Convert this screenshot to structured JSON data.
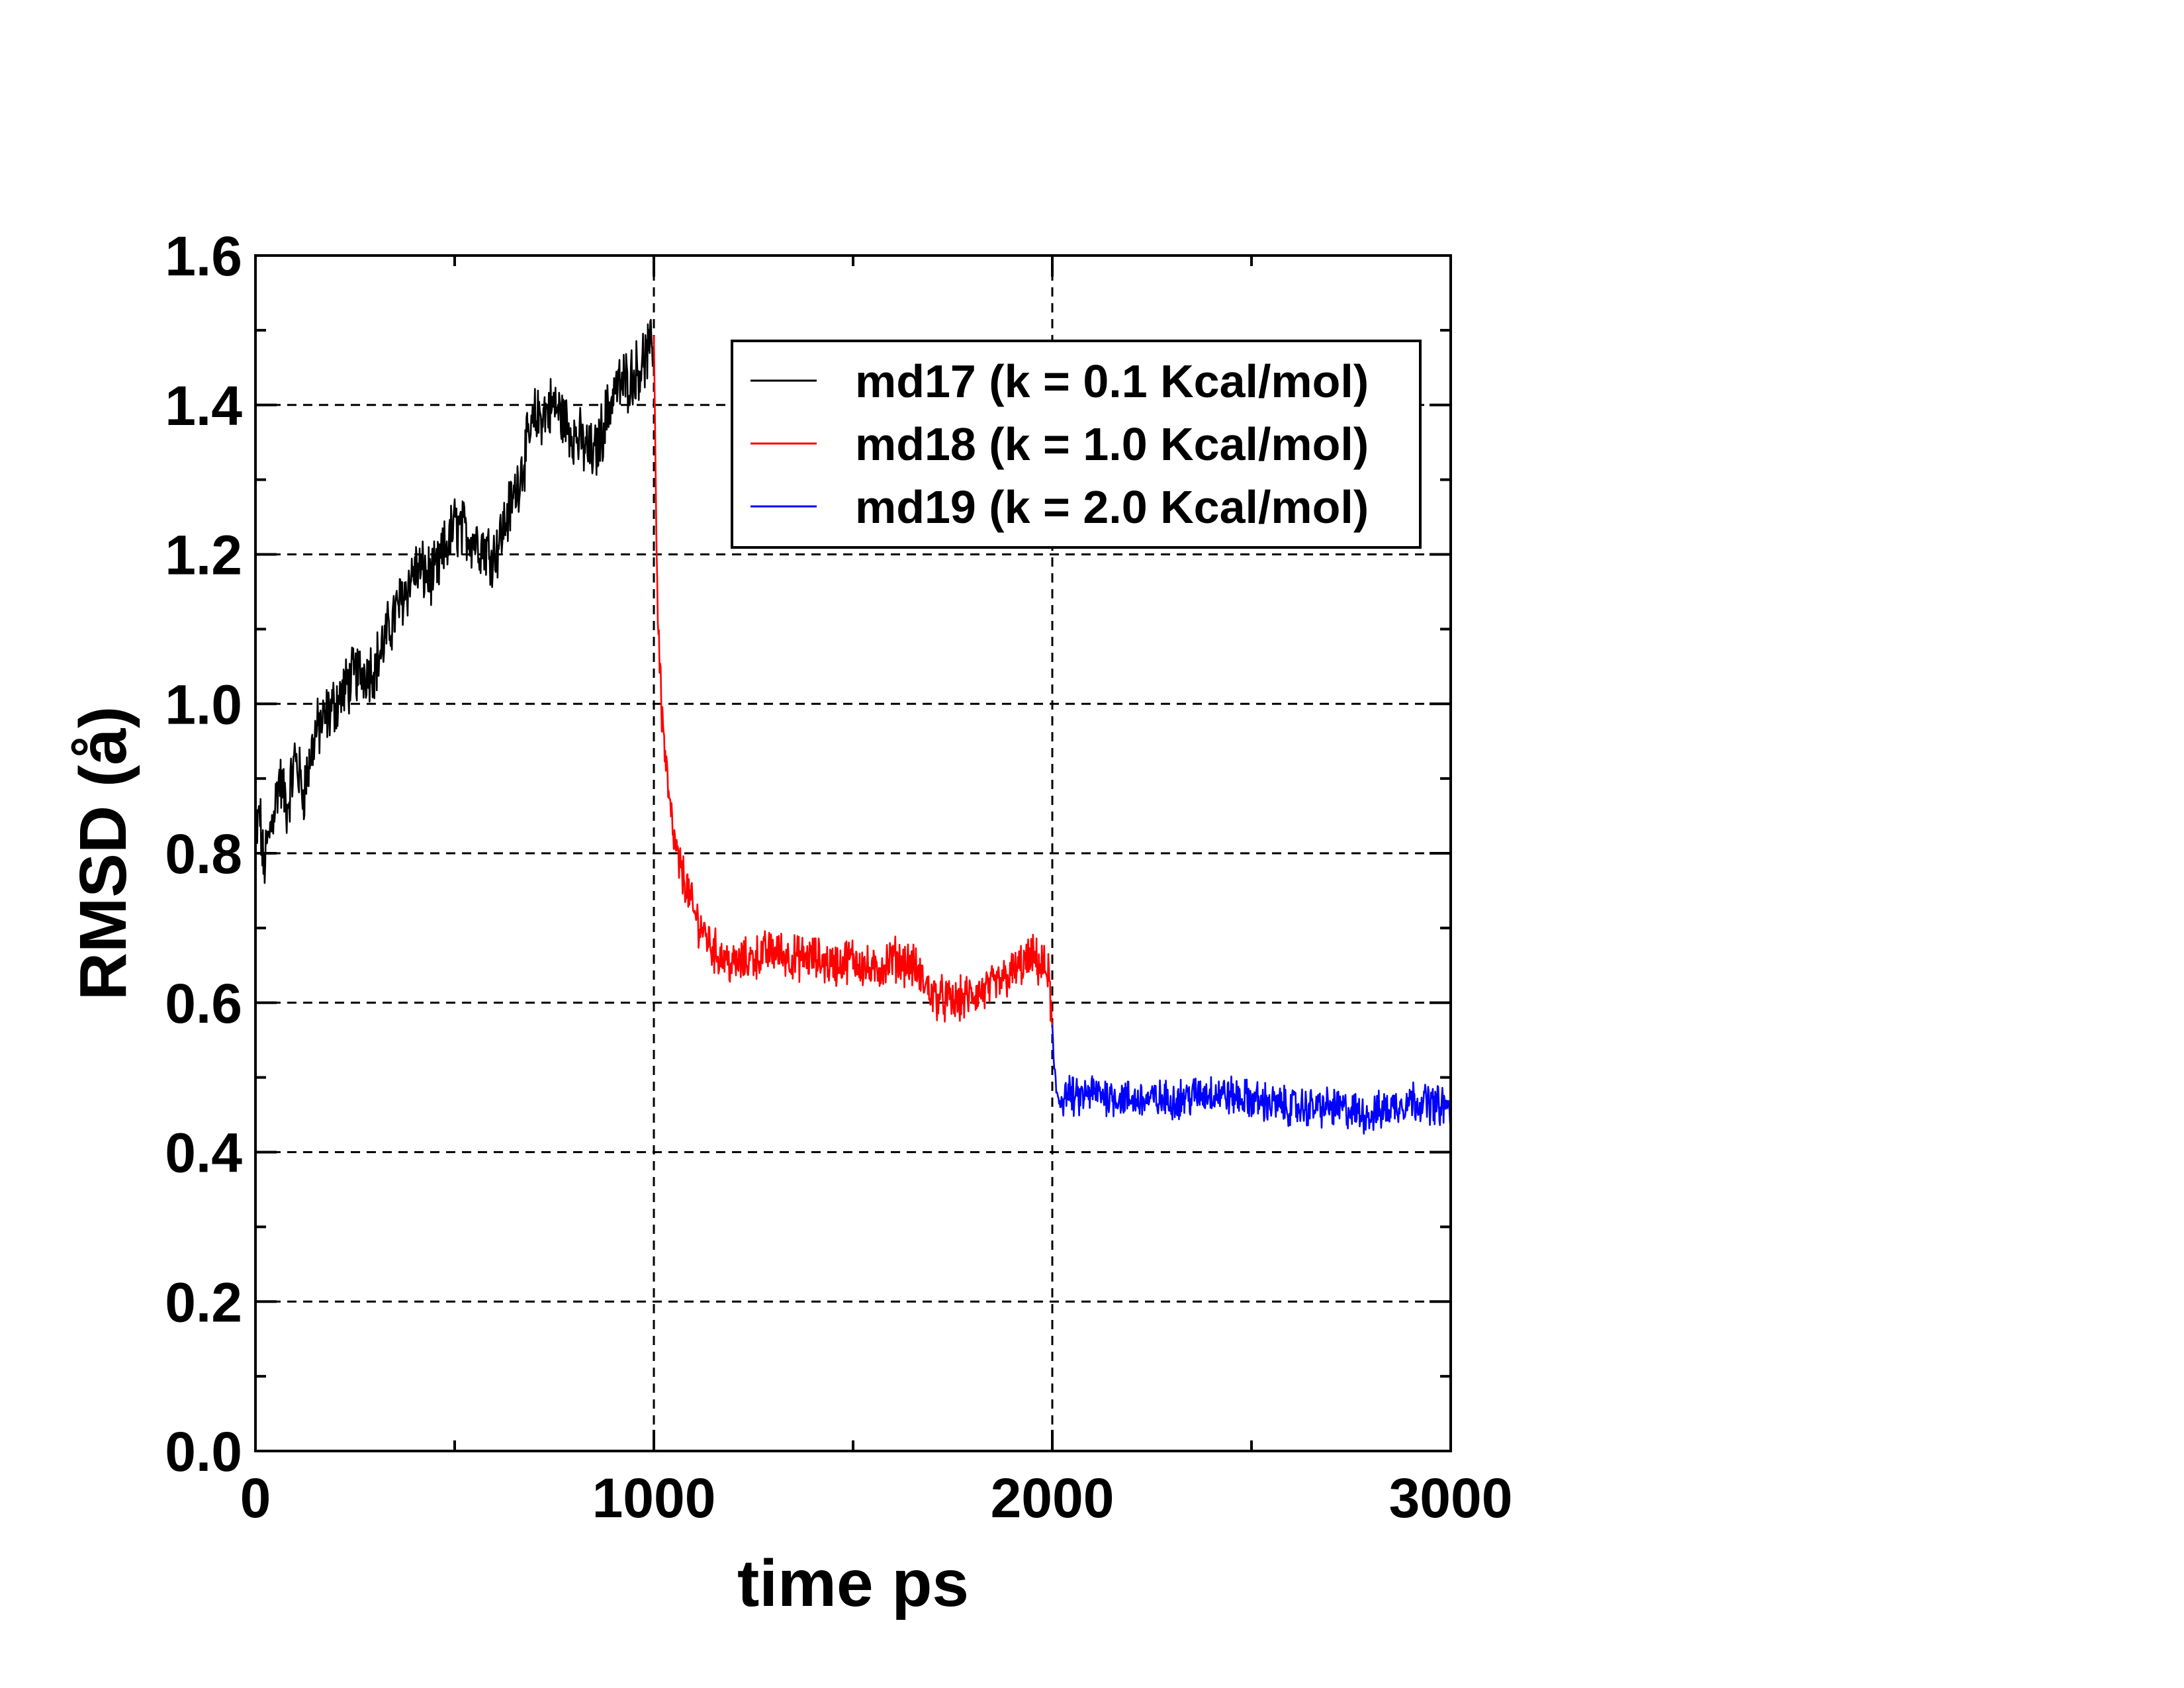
{
  "chart_data": {
    "type": "line",
    "title": "",
    "xlabel": "time ps",
    "ylabel": "RMSD (å)",
    "xlim": [
      0,
      3000
    ],
    "ylim": [
      0,
      1.6
    ],
    "x_ticks": [
      "0",
      "1000",
      "2000",
      "3000"
    ],
    "y_ticks": [
      "0.0",
      "0.2",
      "0.4",
      "0.6",
      "0.8",
      "1.0",
      "1.2",
      "1.4",
      "1.6"
    ],
    "x_tick_values": [
      0,
      1000,
      2000,
      3000
    ],
    "y_tick_values": [
      0.0,
      0.2,
      0.4,
      0.6,
      0.8,
      1.0,
      1.2,
      1.4,
      1.6
    ],
    "x_minor_step": 500,
    "y_minor_step": 0.1,
    "grid": "dashed, major ticks",
    "legend_position": "top-right",
    "series": [
      {
        "name": "md17 (k = 0.1 Kcal/mol)",
        "color": "#000000",
        "x": [
          0,
          10,
          20,
          40,
          60,
          80,
          100,
          120,
          150,
          200,
          250,
          300,
          350,
          400,
          450,
          500,
          550,
          600,
          650,
          700,
          750,
          800,
          850,
          900,
          950,
          1000
        ],
        "y": [
          0.8,
          0.86,
          0.78,
          0.84,
          0.9,
          0.86,
          0.93,
          0.88,
          0.96,
          1.0,
          1.04,
          1.05,
          1.12,
          1.18,
          1.17,
          1.24,
          1.22,
          1.2,
          1.28,
          1.38,
          1.4,
          1.36,
          1.33,
          1.42,
          1.44,
          1.48
        ]
      },
      {
        "name": "md18 (k = 1.0 Kcal/mol)",
        "color": "#ff0000",
        "x": [
          1000,
          1005,
          1010,
          1020,
          1030,
          1040,
          1050,
          1060,
          1080,
          1100,
          1150,
          1200,
          1250,
          1300,
          1350,
          1400,
          1450,
          1500,
          1550,
          1600,
          1650,
          1700,
          1750,
          1800,
          1850,
          1900,
          1950,
          1990,
          2000
        ],
        "y": [
          1.5,
          1.28,
          1.12,
          0.99,
          0.92,
          0.86,
          0.82,
          0.79,
          0.76,
          0.72,
          0.67,
          0.65,
          0.66,
          0.67,
          0.66,
          0.66,
          0.65,
          0.66,
          0.64,
          0.66,
          0.65,
          0.61,
          0.6,
          0.61,
          0.62,
          0.64,
          0.66,
          0.64,
          0.57
        ]
      },
      {
        "name": "md19 (k = 2.0 Kcal/mol)",
        "color": "#0000ff",
        "x": [
          2000,
          2005,
          2010,
          2020,
          2040,
          2060,
          2100,
          2200,
          2300,
          2400,
          2500,
          2600,
          2700,
          2800,
          2900,
          3000
        ],
        "y": [
          0.56,
          0.5,
          0.48,
          0.47,
          0.48,
          0.47,
          0.48,
          0.47,
          0.47,
          0.48,
          0.47,
          0.46,
          0.46,
          0.45,
          0.47,
          0.46
        ]
      }
    ]
  }
}
